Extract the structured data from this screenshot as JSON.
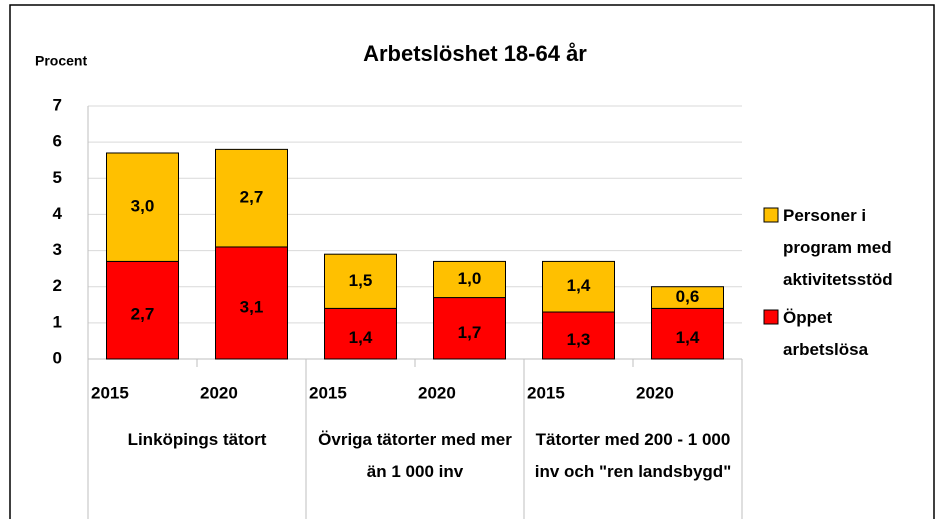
{
  "chart_data": {
    "type": "stacked_bar",
    "title": "Arbetslöshet 18-64 år",
    "y_label": "Procent",
    "categories": [
      "2015",
      "2020",
      "2015",
      "2020",
      "2015",
      "2020"
    ],
    "category_groups": [
      "Linköpings tätort",
      "Övriga tätorter med mer än 1 000 inv",
      "Tätorter med 200 - 1 000 inv och \"ren landsbygd\""
    ],
    "series": [
      {
        "name": "Öppet arbetslösa",
        "color": "#ff0000",
        "values": [
          2.7,
          3.1,
          1.4,
          1.7,
          1.3,
          1.4
        ],
        "value_labels": [
          "2,7",
          "3,1",
          "1,4",
          "1,7",
          "1,3",
          "1,4"
        ]
      },
      {
        "name": "Personer i program med aktivitetsstöd",
        "color": "#ffc000",
        "values": [
          3.0,
          2.7,
          1.5,
          1.0,
          1.4,
          0.6
        ],
        "value_labels": [
          "3,0",
          "2,7",
          "1,5",
          "1,0",
          "1,4",
          "0,6"
        ]
      }
    ],
    "ylim": [
      0,
      7
    ],
    "yticks": [
      0,
      1,
      2,
      3,
      4,
      5,
      6,
      7
    ],
    "grid": true,
    "legend": "right"
  }
}
